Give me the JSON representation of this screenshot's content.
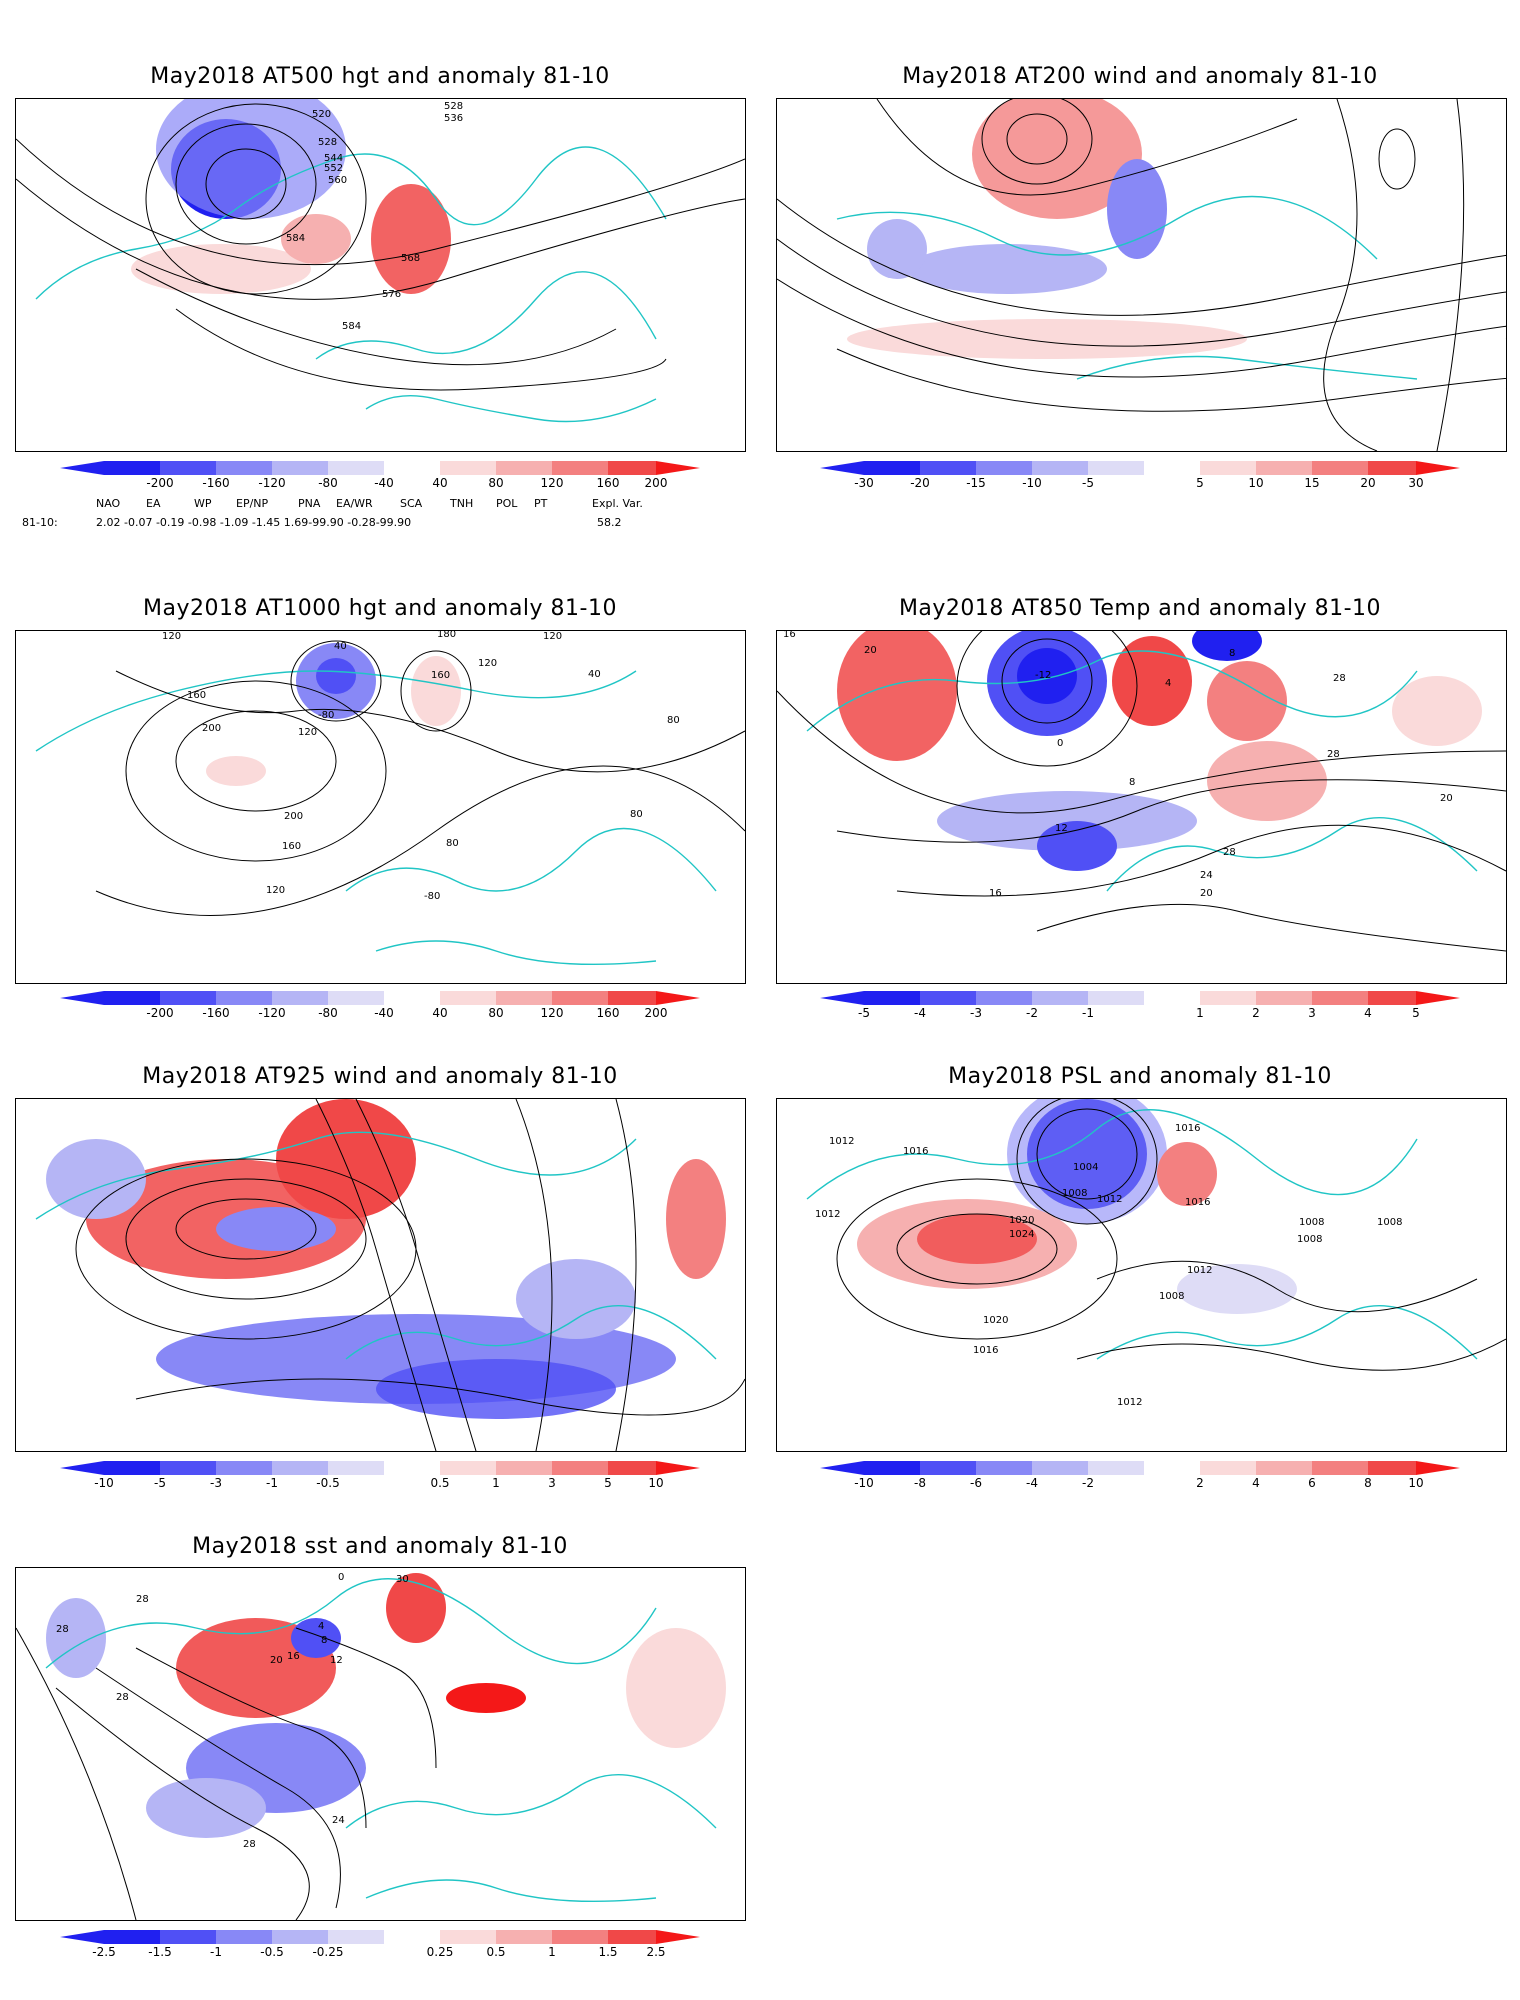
{
  "panels": [
    {
      "id": "p1",
      "title": "May2018 AT500 hgt and anomaly 81-10",
      "ticks": [
        "-200",
        "-160",
        "-120",
        "-80",
        "-40",
        "40",
        "80",
        "120",
        "160",
        "200"
      ],
      "contour_labels": [
        "528",
        "536",
        "520",
        "528",
        "544",
        "552",
        "560",
        "568",
        "576",
        "584",
        "584"
      ]
    },
    {
      "id": "p2",
      "title": "May2018 AT200 wind and anomaly 81-10",
      "ticks": [
        "-30",
        "-20",
        "-15",
        "-10",
        "-5",
        "5",
        "10",
        "15",
        "20",
        "30"
      ],
      "contour_labels": []
    },
    {
      "id": "p3",
      "title": "May2018 AT1000 hgt and anomaly 81-10",
      "ticks": [
        "-200",
        "-160",
        "-120",
        "-80",
        "-40",
        "40",
        "80",
        "120",
        "160",
        "200"
      ],
      "contour_labels": [
        "120",
        "40",
        "180",
        "120",
        "160",
        "120",
        "40",
        "160",
        "200",
        "-80",
        "120",
        "200",
        "160",
        "80",
        "-80",
        "120",
        "80",
        "80"
      ]
    },
    {
      "id": "p4",
      "title": "May2018 AT850 Temp and anomaly 81-10",
      "ticks": [
        "-5",
        "-4",
        "-3",
        "-2",
        "-1",
        "1",
        "2",
        "3",
        "4",
        "5"
      ],
      "contour_labels": [
        "16",
        "20",
        "-12",
        "0",
        "4",
        "8",
        "28",
        "28",
        "8",
        "12",
        "20",
        "28",
        "24",
        "16",
        "20"
      ]
    },
    {
      "id": "p5",
      "title": "May2018 AT925 wind and anomaly 81-10",
      "ticks": [
        "-10",
        "-5",
        "-3",
        "-1",
        "-0.5",
        "0.5",
        "1",
        "3",
        "5",
        "10"
      ],
      "contour_labels": []
    },
    {
      "id": "p6",
      "title": "May2018 PSL and anomaly 81-10",
      "ticks": [
        "-10",
        "-8",
        "-6",
        "-4",
        "-2",
        "2",
        "4",
        "6",
        "8",
        "10"
      ],
      "contour_labels": [
        "1012",
        "1016",
        "1016",
        "1012",
        "1004",
        "1008",
        "1012",
        "1020",
        "1024",
        "1016",
        "1008",
        "1008",
        "1012",
        "1008",
        "1008",
        "1020",
        "1016",
        "1012"
      ]
    },
    {
      "id": "p7",
      "title": "May2018 sst and anomaly 81-10",
      "ticks": [
        "-2.5",
        "-1.5",
        "-1",
        "-0.5",
        "-0.25",
        "0.25",
        "0.5",
        "1",
        "1.5",
        "2.5"
      ],
      "contour_labels": [
        "0",
        "28",
        "28",
        "4",
        "8",
        "12",
        "16",
        "20",
        "28",
        "24",
        "28",
        "30"
      ]
    }
  ],
  "teleconnections": {
    "row_label": "81-10:",
    "headers": [
      "NAO",
      "EA",
      "WP",
      "EP/NP",
      "PNA",
      "EA/WR",
      "SCA",
      "TNH",
      "POL",
      "PT",
      "Expl. Var."
    ],
    "values": "2.02 -0.07 -0.19 -0.98 -1.09 -1.45 1.69-99.90 -0.28-99.90",
    "expl_var": "58.2"
  },
  "colors": {
    "blue_scale": [
      "#2020f0",
      "#5050f5",
      "#8888f6",
      "#b5b5f5",
      "#dedcf6"
    ],
    "red_scale": [
      "#fadada",
      "#f6b0b0",
      "#f38080",
      "#f04848",
      "#f41818"
    ],
    "coast": "#20c5c5"
  }
}
